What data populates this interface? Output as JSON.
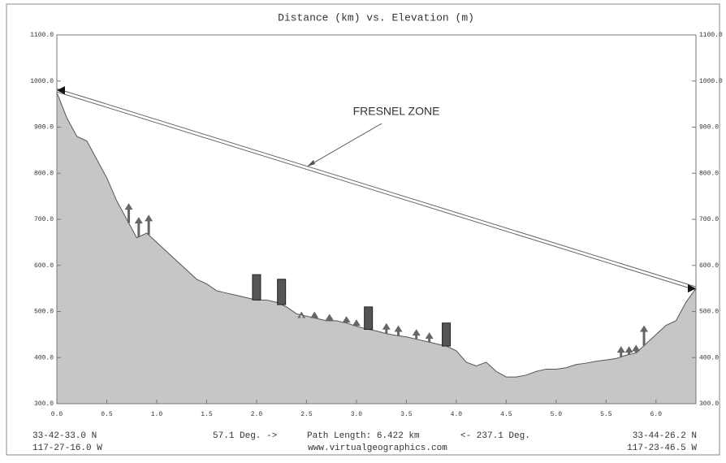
{
  "chart_data": {
    "type": "area",
    "title": "Distance (km)  vs.  Elevation (m)",
    "xlim": [
      0,
      6.4
    ],
    "xticks": [
      {
        "value": 0,
        "label": "0.0"
      },
      0.5,
      {
        "value": 1,
        "label": "1.0"
      },
      1.5,
      {
        "value": 2,
        "label": "2.0"
      },
      2.5,
      {
        "value": 3,
        "label": "3.0"
      },
      3.5,
      {
        "value": 4,
        "label": "4.0"
      },
      4.5,
      {
        "value": 5,
        "label": "5.0"
      },
      5.5,
      {
        "value": 6,
        "label": "6.0"
      }
    ],
    "ylim": [
      300,
      1100
    ],
    "yticks": [
      {
        "value": 300,
        "label": "300.0"
      },
      {
        "value": 400,
        "label": "400.0"
      },
      {
        "value": 500,
        "label": "500.0"
      },
      {
        "value": 600,
        "label": "600.0"
      },
      {
        "value": 700,
        "label": "700.0"
      },
      {
        "value": 800,
        "label": "800.0"
      },
      {
        "value": 900,
        "label": "900.0"
      },
      {
        "value": 1000,
        "label": "1000.0"
      },
      {
        "value": 1100,
        "label": "1100.0"
      }
    ],
    "y2lim": [
      300,
      1100
    ],
    "y2ticks": [
      {
        "value": 300,
        "label": "300.0"
      },
      {
        "value": 400,
        "label": "400.0"
      },
      {
        "value": 500,
        "label": "500.0"
      },
      {
        "value": 600,
        "label": "600.0"
      },
      {
        "value": 700,
        "label": "700.0"
      },
      {
        "value": 800,
        "label": "800.0"
      },
      {
        "value": 900,
        "label": "900.0"
      },
      {
        "value": 1000,
        "label": "1000.0"
      },
      {
        "value": 1100,
        "label": "1100.0"
      }
    ],
    "series": [
      {
        "color": "#c6c6c6",
        "x": [
          0,
          0.1,
          0.2,
          0.3,
          0.4,
          0.5,
          0.6,
          0.7,
          0.8,
          0.9,
          1,
          1.1,
          1.2,
          1.3,
          1.4,
          1.5,
          1.6,
          1.7,
          1.8,
          1.9,
          2,
          2.1,
          2.2,
          2.3,
          2.4,
          2.5,
          2.6,
          2.7,
          2.8,
          2.9,
          3,
          3.1,
          3.2,
          3.3,
          3.4,
          3.5,
          3.6,
          3.7,
          3.8,
          3.9,
          4,
          4.1,
          4.2,
          4.3,
          4.4,
          4.5,
          4.6,
          4.7,
          4.8,
          4.9,
          5,
          5.1,
          5.2,
          5.3,
          5.4,
          5.5,
          5.6,
          5.7,
          5.8,
          5.9,
          6,
          6.1,
          6.2,
          6.3,
          6.4
        ],
        "values": [
          975,
          920,
          880,
          870,
          830,
          790,
          740,
          700,
          660,
          670,
          650,
          630,
          610,
          590,
          570,
          560,
          545,
          540,
          535,
          530,
          525,
          525,
          520,
          510,
          495,
          490,
          485,
          480,
          480,
          475,
          468,
          462,
          458,
          452,
          448,
          445,
          440,
          435,
          430,
          425,
          415,
          390,
          382,
          390,
          370,
          358,
          358,
          362,
          370,
          375,
          375,
          378,
          385,
          388,
          392,
          395,
          398,
          405,
          410,
          430,
          450,
          470,
          480,
          520,
          550
        ]
      }
    ],
    "line_of_sight": {
      "x": [
        0,
        6.4
      ],
      "values": [
        980,
        550
      ]
    },
    "trees": {
      "x": [
        0.72,
        0.82,
        0.92,
        2.45,
        2.58,
        2.73,
        2.9,
        3.0,
        3.3,
        3.42,
        3.6,
        3.73,
        5.65,
        5.73,
        5.8,
        5.88
      ],
      "values": [
        735,
        705,
        710,
        500,
        500,
        495,
        490,
        483,
        475,
        470,
        462,
        455,
        425,
        425,
        428,
        470
      ]
    },
    "buildings": {
      "x": [
        2.0,
        2.25,
        3.12,
        3.9
      ],
      "values": [
        580,
        570,
        510,
        475
      ]
    },
    "annotation": "FRESNEL ZONE",
    "footer": {
      "left_lat": "33-42-33.0 N",
      "left_lon": "117-27-16.0 W",
      "bearing_out": "57.1 Deg. ->",
      "path_length": "Path Length: 6.422 km",
      "bearing_back": "<- 237.1 Deg.",
      "right_lat": "33-44-26.2 N",
      "right_lon": "117-23-46.5 W",
      "website": "www.virtualgeographics.com"
    }
  }
}
